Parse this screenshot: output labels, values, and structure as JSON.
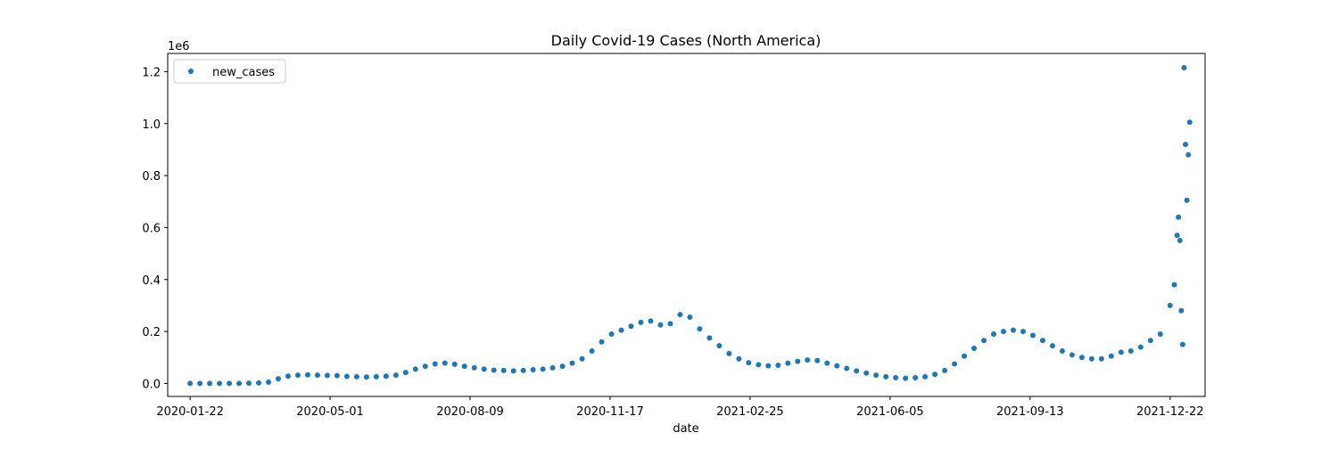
{
  "chart_data": {
    "type": "scatter",
    "title": "Daily Covid-19 Cases (North America)",
    "xlabel": "date",
    "ylabel": "",
    "y_offset_label": "1e6",
    "series": [
      {
        "name": "new_cases",
        "color": "#1f77b4"
      }
    ],
    "x_range": [
      "2020-01-06",
      "2022-01-16"
    ],
    "ylim": [
      -50000,
      1270000
    ],
    "x_ticks": [
      "2020-01-22",
      "2020-05-01",
      "2020-08-09",
      "2020-11-17",
      "2021-02-25",
      "2021-06-05",
      "2021-09-13",
      "2021-12-22"
    ],
    "y_ticks": [
      0,
      200000,
      400000,
      600000,
      800000,
      1000000,
      1200000
    ],
    "y_tick_labels": [
      "0.0",
      "0.2",
      "0.4",
      "0.6",
      "0.8",
      "1.0",
      "1.2"
    ],
    "legend": {
      "placement": "upper-left",
      "label": "new_cases"
    },
    "grid": false,
    "series_estimated": "daily points were estimated from the scatter; the values array below uses weekly dates",
    "points": [
      [
        "2020-01-22",
        0
      ],
      [
        "2020-01-29",
        0
      ],
      [
        "2020-02-05",
        0
      ],
      [
        "2020-02-12",
        0
      ],
      [
        "2020-02-19",
        0
      ],
      [
        "2020-02-26",
        0
      ],
      [
        "2020-03-04",
        1000
      ],
      [
        "2020-03-11",
        2000
      ],
      [
        "2020-03-18",
        5000
      ],
      [
        "2020-03-25",
        18000
      ],
      [
        "2020-04-01",
        28000
      ],
      [
        "2020-04-08",
        32000
      ],
      [
        "2020-04-15",
        33000
      ],
      [
        "2020-04-22",
        32000
      ],
      [
        "2020-04-29",
        31000
      ],
      [
        "2020-05-06",
        30000
      ],
      [
        "2020-05-13",
        27000
      ],
      [
        "2020-05-20",
        26000
      ],
      [
        "2020-05-27",
        25000
      ],
      [
        "2020-06-03",
        26000
      ],
      [
        "2020-06-10",
        28000
      ],
      [
        "2020-06-17",
        32000
      ],
      [
        "2020-06-24",
        42000
      ],
      [
        "2020-07-01",
        55000
      ],
      [
        "2020-07-08",
        66000
      ],
      [
        "2020-07-15",
        75000
      ],
      [
        "2020-07-22",
        78000
      ],
      [
        "2020-07-29",
        74000
      ],
      [
        "2020-08-05",
        66000
      ],
      [
        "2020-08-12",
        60000
      ],
      [
        "2020-08-19",
        55000
      ],
      [
        "2020-08-26",
        51000
      ],
      [
        "2020-09-02",
        50000
      ],
      [
        "2020-09-09",
        48000
      ],
      [
        "2020-09-16",
        50000
      ],
      [
        "2020-09-23",
        53000
      ],
      [
        "2020-09-30",
        55000
      ],
      [
        "2020-10-07",
        60000
      ],
      [
        "2020-10-14",
        66000
      ],
      [
        "2020-10-21",
        78000
      ],
      [
        "2020-10-28",
        95000
      ],
      [
        "2020-11-04",
        125000
      ],
      [
        "2020-11-11",
        160000
      ],
      [
        "2020-11-18",
        190000
      ],
      [
        "2020-11-25",
        205000
      ],
      [
        "2020-12-02",
        220000
      ],
      [
        "2020-12-09",
        235000
      ],
      [
        "2020-12-16",
        240000
      ],
      [
        "2020-12-23",
        225000
      ],
      [
        "2020-12-30",
        230000
      ],
      [
        "2021-01-06",
        265000
      ],
      [
        "2021-01-13",
        255000
      ],
      [
        "2021-01-20",
        210000
      ],
      [
        "2021-01-27",
        175000
      ],
      [
        "2021-02-03",
        145000
      ],
      [
        "2021-02-10",
        115000
      ],
      [
        "2021-02-17",
        95000
      ],
      [
        "2021-02-24",
        80000
      ],
      [
        "2021-03-03",
        72000
      ],
      [
        "2021-03-10",
        68000
      ],
      [
        "2021-03-17",
        70000
      ],
      [
        "2021-03-24",
        78000
      ],
      [
        "2021-03-31",
        85000
      ],
      [
        "2021-04-07",
        90000
      ],
      [
        "2021-04-14",
        88000
      ],
      [
        "2021-04-21",
        78000
      ],
      [
        "2021-04-28",
        68000
      ],
      [
        "2021-05-05",
        58000
      ],
      [
        "2021-05-12",
        48000
      ],
      [
        "2021-05-19",
        40000
      ],
      [
        "2021-05-26",
        32000
      ],
      [
        "2021-06-02",
        26000
      ],
      [
        "2021-06-09",
        22000
      ],
      [
        "2021-06-16",
        20000
      ],
      [
        "2021-06-23",
        22000
      ],
      [
        "2021-06-30",
        26000
      ],
      [
        "2021-07-07",
        35000
      ],
      [
        "2021-07-14",
        50000
      ],
      [
        "2021-07-21",
        75000
      ],
      [
        "2021-07-28",
        105000
      ],
      [
        "2021-08-04",
        135000
      ],
      [
        "2021-08-11",
        165000
      ],
      [
        "2021-08-18",
        190000
      ],
      [
        "2021-08-25",
        200000
      ],
      [
        "2021-09-01",
        205000
      ],
      [
        "2021-09-08",
        200000
      ],
      [
        "2021-09-15",
        185000
      ],
      [
        "2021-09-22",
        165000
      ],
      [
        "2021-09-29",
        145000
      ],
      [
        "2021-10-06",
        125000
      ],
      [
        "2021-10-13",
        110000
      ],
      [
        "2021-10-20",
        100000
      ],
      [
        "2021-10-27",
        95000
      ],
      [
        "2021-11-03",
        95000
      ],
      [
        "2021-11-10",
        105000
      ],
      [
        "2021-11-17",
        120000
      ],
      [
        "2021-11-24",
        125000
      ],
      [
        "2021-12-01",
        140000
      ],
      [
        "2021-12-08",
        165000
      ],
      [
        "2021-12-15",
        190000
      ],
      [
        "2021-12-22",
        300000
      ],
      [
        "2021-12-25",
        380000
      ],
      [
        "2021-12-27",
        570000
      ],
      [
        "2021-12-28",
        640000
      ],
      [
        "2021-12-29",
        550000
      ],
      [
        "2021-12-30",
        280000
      ],
      [
        "2021-12-31",
        150000
      ],
      [
        "2022-01-01",
        1215000
      ],
      [
        "2022-01-02",
        920000
      ],
      [
        "2022-01-03",
        705000
      ],
      [
        "2022-01-04",
        880000
      ],
      [
        "2022-01-05",
        1005000
      ]
    ]
  }
}
